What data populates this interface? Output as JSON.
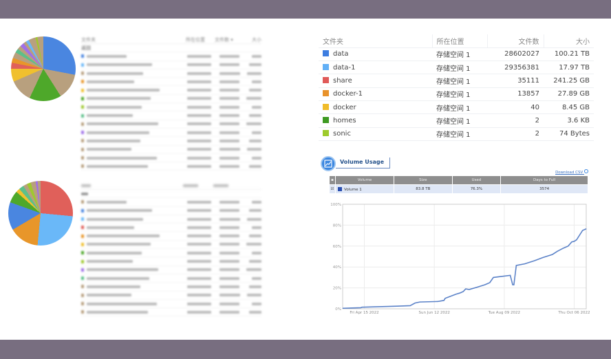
{
  "left_top": {
    "headers": [
      "文件夹",
      "所在位置",
      "文件数 ▾",
      "大小"
    ],
    "back_label": "返回",
    "pie_slices": [
      {
        "color": "#4a86e0",
        "pct": 28
      },
      {
        "color": "#b8a07e",
        "pct": 13
      },
      {
        "color": "#4ea82a",
        "pct": 16
      },
      {
        "color": "#b8a07e",
        "pct": 11.5
      },
      {
        "color": "#f0c02e",
        "pct": 6.5
      },
      {
        "color": "#e0605a",
        "pct": 3
      },
      {
        "color": "#e8962a",
        "pct": 2.5
      },
      {
        "color": "#b8a07e",
        "pct": 3
      },
      {
        "color": "#5cc08a",
        "pct": 2
      },
      {
        "color": "#b8a07e",
        "pct": 2
      },
      {
        "color": "#a070e8",
        "pct": 2
      },
      {
        "color": "#b8a07e",
        "pct": 1.5
      },
      {
        "color": "#6ab8f8",
        "pct": 1.5
      },
      {
        "color": "#b8a07e",
        "pct": 3.5
      },
      {
        "color": "#a0c830",
        "pct": 1
      },
      {
        "color": "#b8a07e",
        "pct": 3
      }
    ],
    "row_colors": [
      "#4a86e0",
      "#6ab8f8",
      "#b8a07e",
      "#e8962a",
      "#f0c02e",
      "#4ea82a",
      "#a0c830",
      "#5cc08a",
      "#b8a07e",
      "#a070e8",
      "#b8a07e",
      "#b8a07e",
      "#b8a07e",
      "#b8a07e"
    ]
  },
  "left_bottom": {
    "pie_slices": [
      {
        "color": "#e0605a",
        "pct": 26.5
      },
      {
        "color": "#6ab8f8",
        "pct": 25
      },
      {
        "color": "#e8962a",
        "pct": 15
      },
      {
        "color": "#4a86e0",
        "pct": 14
      },
      {
        "color": "#4ea82a",
        "pct": 6
      },
      {
        "color": "#f0c02e",
        "pct": 2
      },
      {
        "color": "#5cc08a",
        "pct": 2.5
      },
      {
        "color": "#b8a07e",
        "pct": 2
      },
      {
        "color": "#a0c830",
        "pct": 2
      },
      {
        "color": "#b8a07e",
        "pct": 2.5
      },
      {
        "color": "#a070e8",
        "pct": 1
      },
      {
        "color": "#b8a07e",
        "pct": 3.5
      }
    ],
    "row_colors": [
      "#b8a07e",
      "#4a86e0",
      "#6ab8f8",
      "#e0605a",
      "#e8962a",
      "#f0c02e",
      "#4ea82a",
      "#a0c830",
      "#a070e8",
      "#5cc08a",
      "#b8a07e",
      "#b8a07e",
      "#b8a07e",
      "#b8a07e"
    ]
  },
  "folders": {
    "headers": [
      "文件夹",
      "所在位置",
      "文件数",
      "大小"
    ],
    "rows": [
      {
        "name": "data",
        "location": "存储空间 1",
        "count": "28602027",
        "size": "100.21 TB",
        "color": "#3d7de0"
      },
      {
        "name": "data-1",
        "location": "存储空间 1",
        "count": "29356381",
        "size": "17.97 TB",
        "color": "#62b0f6"
      },
      {
        "name": "share",
        "location": "存储空间 1",
        "count": "35111",
        "size": "241.25 GB",
        "color": "#e05a58"
      },
      {
        "name": "docker-1",
        "location": "存储空间 1",
        "count": "13857",
        "size": "27.89 GB",
        "color": "#e8922a"
      },
      {
        "name": "docker",
        "location": "存储空间 1",
        "count": "40",
        "size": "8.45 GB",
        "color": "#f0bc2a"
      },
      {
        "name": "homes",
        "location": "存储空间 1",
        "count": "2",
        "size": "3.6 KB",
        "color": "#3e9a22"
      },
      {
        "name": "sonic",
        "location": "存储空间 1",
        "count": "2",
        "size": "74 Bytes",
        "color": "#9ecb2c"
      }
    ]
  },
  "volume": {
    "tab_label": "Volume Usage",
    "download_label": "Download CSV",
    "headers": [
      "Volume",
      "Size",
      "Used",
      "Days to Full"
    ],
    "row": {
      "name": "Volume 1",
      "size": "83.8 TB",
      "used": "76.3%",
      "days": "3574",
      "checked": true
    }
  },
  "chart_data": {
    "type": "line",
    "xlabel": "",
    "ylabel": "",
    "ylim": [
      0,
      100
    ],
    "y_ticks": [
      "0%",
      "20%",
      "40%",
      "60%",
      "80%",
      "100%"
    ],
    "x_ticks": [
      "Fri Apr 15 2022",
      "Sun Jun 12 2022",
      "Tue Aug 09 2022",
      "Thu Oct 06 2022"
    ],
    "x_tick_dates": [
      "2022-04-15",
      "2022-06-12",
      "2022-08-09",
      "2022-10-06"
    ],
    "xlim": [
      "2022-03-28",
      "2022-10-16"
    ],
    "grid": true,
    "color": "#5b82c8",
    "points": [
      [
        "2022-03-28",
        0.5
      ],
      [
        "2022-04-12",
        1
      ],
      [
        "2022-04-13",
        1.5
      ],
      [
        "2022-05-12",
        2.5
      ],
      [
        "2022-05-23",
        3
      ],
      [
        "2022-05-27",
        5.5
      ],
      [
        "2022-05-31",
        6.5
      ],
      [
        "2022-06-15",
        7
      ],
      [
        "2022-06-20",
        8
      ],
      [
        "2022-06-21",
        10
      ],
      [
        "2022-06-30",
        14
      ],
      [
        "2022-07-03",
        15
      ],
      [
        "2022-07-06",
        16.5
      ],
      [
        "2022-07-08",
        19
      ],
      [
        "2022-07-11",
        18.5
      ],
      [
        "2022-07-17",
        20.5
      ],
      [
        "2022-07-24",
        23
      ],
      [
        "2022-07-28",
        25
      ],
      [
        "2022-07-31",
        30
      ],
      [
        "2022-08-14",
        32
      ],
      [
        "2022-08-16",
        23
      ],
      [
        "2022-08-17",
        23
      ],
      [
        "2022-08-19",
        41.5
      ],
      [
        "2022-08-26",
        43
      ],
      [
        "2022-09-03",
        46
      ],
      [
        "2022-09-10",
        49
      ],
      [
        "2022-09-18",
        52
      ],
      [
        "2022-09-22",
        55
      ],
      [
        "2022-09-27",
        58
      ],
      [
        "2022-10-01",
        60
      ],
      [
        "2022-10-04",
        64
      ],
      [
        "2022-10-06",
        64.5
      ],
      [
        "2022-10-08",
        66
      ],
      [
        "2022-10-13",
        75
      ],
      [
        "2022-10-16",
        76.5
      ]
    ]
  }
}
